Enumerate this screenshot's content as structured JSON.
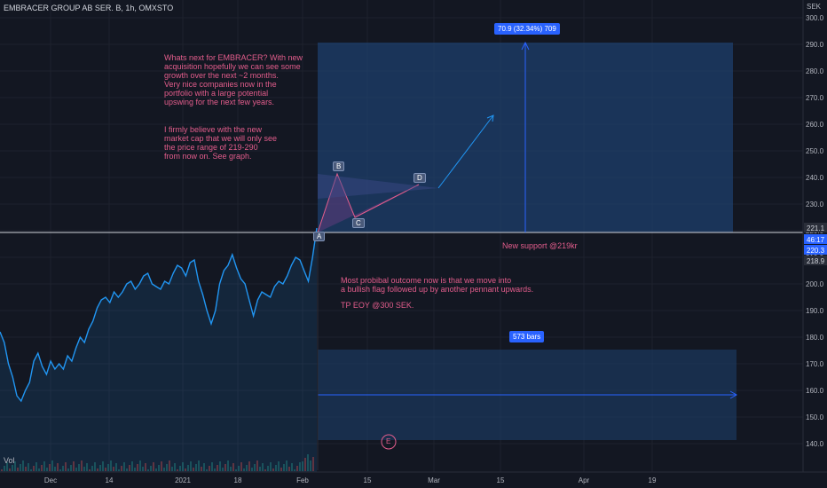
{
  "header": {
    "title": "EMBRACER GROUP AB SER. B, 1h, OMXSTO",
    "currency": "SEK",
    "volume_label": "Vol"
  },
  "annotations": {
    "note1": "Whats next for EMBRACER? With new\nacquisition hopefully we can see some\ngrowth over the next ~2 months.\nVery nice companies now in the\nportfolio with a large potential\nupswing for the next few years.",
    "note2": "I firmly believe with the new\nmarket cap that we will only see\nthe price range of 219-290\nfrom now on. See graph.",
    "note3": "Most probibal outcome now is that we move into\na bullish flag followed up by another pennant upwards.",
    "note4": "TP EOY @300 SEK.",
    "support": "New support @219kr",
    "measure": "70.9 (32.34%) 709",
    "bars": "573 bars",
    "points": [
      "A",
      "B",
      "C",
      "D",
      "E"
    ]
  },
  "price_labels": {
    "p1": "221.1",
    "p2": "46:17",
    "p3": "220.3",
    "p4": "218.9"
  },
  "colors": {
    "background": "#131722",
    "price_line": "#2196f3",
    "annotation_text": "#e35d8c",
    "measure_box": "#2962ff"
  },
  "chart_data": {
    "type": "line",
    "yticks": [
      140,
      150,
      160,
      170,
      180,
      190,
      200,
      210,
      220,
      230,
      240,
      250,
      260,
      270,
      280,
      290,
      300
    ],
    "ylim": [
      136,
      302
    ],
    "xticks": [
      "Dec",
      "14",
      "2021",
      "18",
      "Feb",
      "15",
      "Mar",
      "15",
      "Apr",
      "19"
    ],
    "series": [
      {
        "values": [
          182,
          178,
          170,
          165,
          158,
          156,
          160,
          163,
          171,
          174,
          169,
          166,
          171,
          168,
          170,
          168,
          173,
          171,
          176,
          180,
          178,
          183,
          186,
          191,
          194,
          195,
          193,
          197,
          195,
          197,
          200,
          201,
          198,
          200,
          203,
          204,
          200,
          199,
          198,
          201,
          200,
          204,
          207,
          206,
          203,
          208,
          209,
          201,
          196,
          190,
          185,
          190,
          200,
          205,
          207,
          211,
          206,
          202,
          200,
          194,
          188,
          194,
          197,
          196,
          195,
          199,
          201,
          200,
          203,
          207,
          210,
          209,
          205,
          201,
          210,
          221
        ]
      }
    ]
  }
}
